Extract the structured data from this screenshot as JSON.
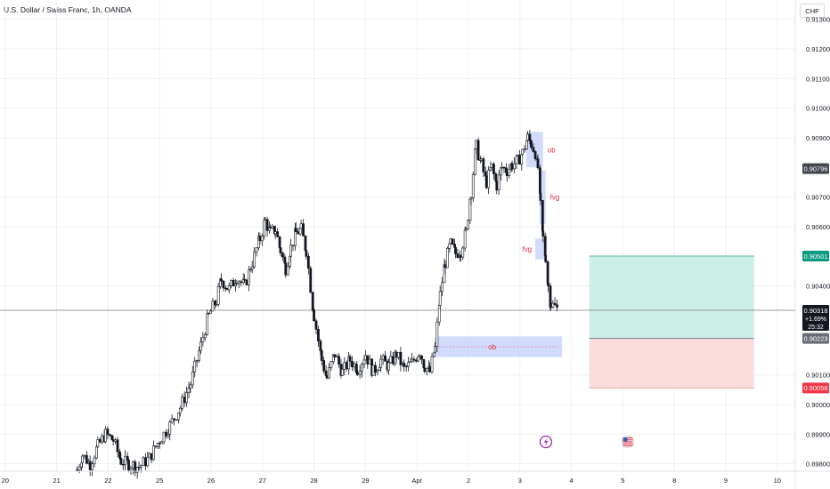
{
  "header": {
    "title": "U.S. Dollar / Swiss Franc, 1h, OANDA",
    "currency": "CHF"
  },
  "colors": {
    "candle": "#131722",
    "grid": "#eef0f3",
    "zone": "#c9d6fb",
    "label": "#e0314b",
    "target": "#cdeee6",
    "stop": "#fbdcdc",
    "last_price_bg": "#131722",
    "tp_bg": "#089981",
    "sl_bg": "#f23645",
    "pos_bg": "#6a6d78"
  },
  "chart_data": {
    "type": "candlestick",
    "title": "U.S. Dollar / Swiss Franc, 1h, OANDA",
    "y_ticks": [
      "0.91300",
      "0.91200",
      "0.91100",
      "0.91000",
      "0.90900",
      "0.90700",
      "0.90600",
      "0.90400",
      "0.90100",
      "0.90000",
      "0.89900",
      "0.89800"
    ],
    "y_tick_values": [
      0.913,
      0.912,
      0.911,
      0.91,
      0.909,
      0.907,
      0.906,
      0.904,
      0.901,
      0.9,
      0.899,
      0.898
    ],
    "ylim": [
      0.89775,
      0.91365
    ],
    "x_ticks": [
      "20",
      "21",
      "22",
      "25",
      "26",
      "27",
      "28",
      "29",
      "Apr",
      "2",
      "3",
      "4",
      "5",
      "8",
      "9",
      "10"
    ],
    "x_tick_positions": [
      0,
      1,
      2,
      3,
      4,
      5,
      6,
      7,
      8,
      9,
      10,
      11,
      12,
      13,
      14,
      15
    ],
    "xlim": [
      -0.1,
      15.35
    ],
    "price_path": [
      [
        1.4,
        0.8978
      ],
      [
        1.5,
        0.8983
      ],
      [
        1.65,
        0.898
      ],
      [
        1.8,
        0.8986
      ],
      [
        1.95,
        0.899
      ],
      [
        2.1,
        0.8988
      ],
      [
        2.25,
        0.8981
      ],
      [
        2.4,
        0.898
      ],
      [
        2.6,
        0.8979
      ],
      [
        2.8,
        0.8982
      ],
      [
        3.0,
        0.8988
      ],
      [
        3.2,
        0.8993
      ],
      [
        3.4,
        0.8999
      ],
      [
        3.6,
        0.9007
      ],
      [
        3.8,
        0.902
      ],
      [
        3.95,
        0.903
      ],
      [
        4.1,
        0.9035
      ],
      [
        4.2,
        0.9042
      ],
      [
        4.35,
        0.9039
      ],
      [
        4.5,
        0.9043
      ],
      [
        4.65,
        0.904
      ],
      [
        4.8,
        0.9048
      ],
      [
        4.95,
        0.9056
      ],
      [
        5.05,
        0.9062
      ],
      [
        5.15,
        0.9058
      ],
      [
        5.25,
        0.9059
      ],
      [
        5.35,
        0.9052
      ],
      [
        5.45,
        0.9046
      ],
      [
        5.55,
        0.9053
      ],
      [
        5.65,
        0.9058
      ],
      [
        5.75,
        0.9059
      ],
      [
        5.85,
        0.9052
      ],
      [
        6.0,
        0.903
      ],
      [
        6.15,
        0.9015
      ],
      [
        6.25,
        0.9009
      ],
      [
        6.4,
        0.9017
      ],
      [
        6.55,
        0.9011
      ],
      [
        6.7,
        0.9015
      ],
      [
        6.85,
        0.9012
      ],
      [
        7.0,
        0.9017
      ],
      [
        7.15,
        0.9011
      ],
      [
        7.3,
        0.9015
      ],
      [
        7.45,
        0.9013
      ],
      [
        7.6,
        0.9017
      ],
      [
        7.75,
        0.9012
      ],
      [
        7.9,
        0.9014
      ],
      [
        8.05,
        0.9018
      ],
      [
        8.15,
        0.9013
      ],
      [
        8.25,
        0.9011
      ],
      [
        8.35,
        0.9019
      ],
      [
        8.45,
        0.9037
      ],
      [
        8.55,
        0.9048
      ],
      [
        8.65,
        0.9054
      ],
      [
        8.75,
        0.9051
      ],
      [
        8.85,
        0.9052
      ],
      [
        8.95,
        0.9058
      ],
      [
        9.05,
        0.9072
      ],
      [
        9.15,
        0.9087
      ],
      [
        9.25,
        0.9081
      ],
      [
        9.35,
        0.9075
      ],
      [
        9.45,
        0.908
      ],
      [
        9.55,
        0.9074
      ],
      [
        9.65,
        0.908
      ],
      [
        9.75,
        0.9079
      ],
      [
        9.85,
        0.9081
      ],
      [
        9.95,
        0.9082
      ],
      [
        10.05,
        0.9085
      ],
      [
        10.15,
        0.909
      ],
      [
        10.22,
        0.9088
      ],
      [
        10.3,
        0.9085
      ],
      [
        10.35,
        0.908
      ],
      [
        10.4,
        0.9067
      ],
      [
        10.45,
        0.9056
      ],
      [
        10.5,
        0.905
      ],
      [
        10.55,
        0.904
      ],
      [
        10.6,
        0.9034
      ],
      [
        10.68,
        0.9033
      ],
      [
        10.75,
        0.90318
      ]
    ],
    "zones": [
      {
        "label": "ob",
        "x0": 10.12,
        "x1": 10.45,
        "y0": 0.9092,
        "y1": 0.908
      },
      {
        "label": "fvg",
        "x0": 10.38,
        "x1": 10.5,
        "y0": 0.9079,
        "y1": 0.9061
      },
      {
        "label": "fvg",
        "x0": 10.3,
        "x1": 10.5,
        "y0": 0.9056,
        "y1": 0.9049
      },
      {
        "label": "ob",
        "x0": 8.35,
        "x1": 10.82,
        "y0": 0.9023,
        "y1": 0.9016
      }
    ],
    "position": {
      "x0": 11.35,
      "x1": 14.55,
      "take_profit": 0.90501,
      "entry": 0.90223,
      "stop_loss": 0.90056
    },
    "price_labels": {
      "level_1": "0.90796",
      "take_profit": "0.90501",
      "last_price": "0.90318",
      "change": "+1.69%",
      "countdown": "25:32",
      "entry": "0.90223",
      "stop_loss": "0.90056"
    },
    "last_price": 0.90318,
    "level_1_value": 0.90796,
    "grid": true
  }
}
